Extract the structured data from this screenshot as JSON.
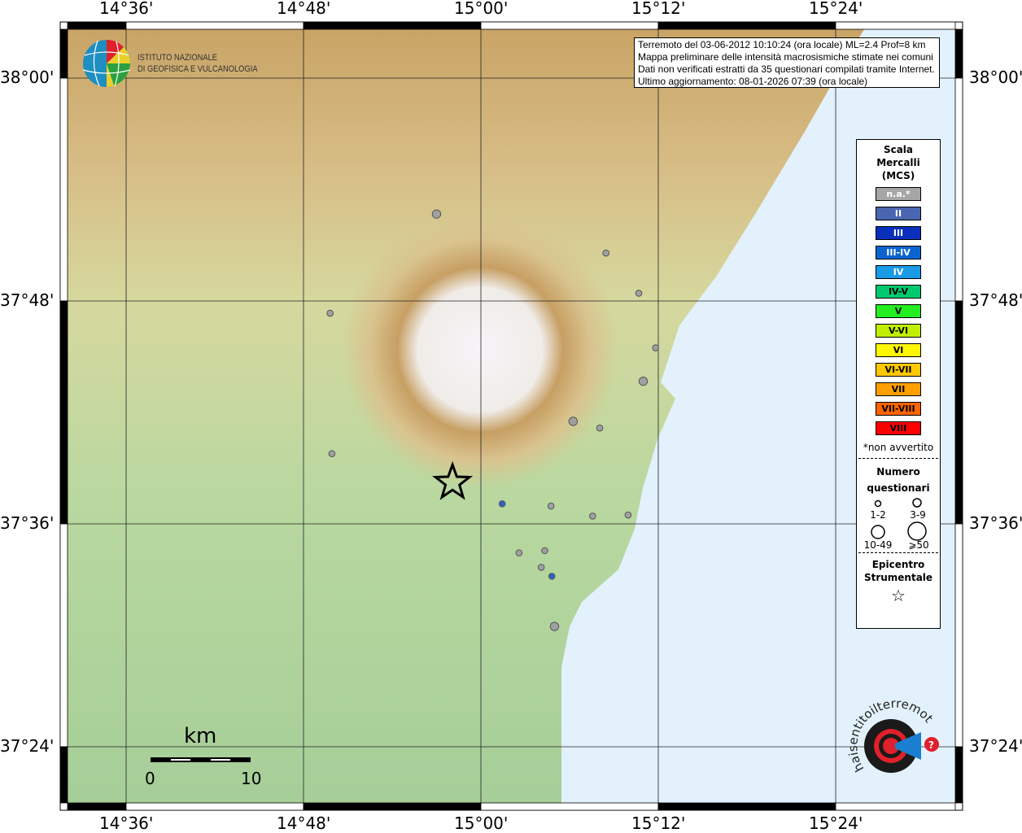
{
  "map": {
    "lon_ticks": [
      "14°36'",
      "14°48'",
      "15°00'",
      "15°12'",
      "15°24'"
    ],
    "lat_ticks": [
      "38°00'",
      "37°48'",
      "37°36'",
      "37°24'"
    ],
    "colors": {
      "sea": "#e2f1fc",
      "land_low": "#a8cf98",
      "land_high": "#c49a5a",
      "summit": "#f4f2f6"
    },
    "scale_bar": {
      "unit": "km",
      "start": "0",
      "end": "10"
    },
    "epicenter": {
      "lon": 14.968,
      "lat": 37.637,
      "icon": "star-icon"
    },
    "points": [
      {
        "lon": 14.95,
        "lat": 37.878,
        "size": "3-9",
        "color": "#a0a0a0"
      },
      {
        "lon": 15.141,
        "lat": 37.843,
        "size": "1-2",
        "color": "#a0a0a0"
      },
      {
        "lon": 15.178,
        "lat": 37.807,
        "size": "1-2",
        "color": "#a0a0a0"
      },
      {
        "lon": 14.83,
        "lat": 37.789,
        "size": "1-2",
        "color": "#a0a0a0"
      },
      {
        "lon": 15.197,
        "lat": 37.758,
        "size": "1-2",
        "color": "#a0a0a0"
      },
      {
        "lon": 15.183,
        "lat": 37.728,
        "size": "3-9",
        "color": "#a0a0a0"
      },
      {
        "lon": 15.104,
        "lat": 37.692,
        "size": "3-9",
        "color": "#a0a0a0"
      },
      {
        "lon": 15.134,
        "lat": 37.686,
        "size": "1-2",
        "color": "#a0a0a0"
      },
      {
        "lon": 14.832,
        "lat": 37.663,
        "size": "1-2",
        "color": "#a0a0a0"
      },
      {
        "lon": 15.024,
        "lat": 37.618,
        "size": "1-2",
        "color": "#2f62c4"
      },
      {
        "lon": 15.079,
        "lat": 37.616,
        "size": "1-2",
        "color": "#a0a0a0"
      },
      {
        "lon": 15.126,
        "lat": 37.607,
        "size": "1-2",
        "color": "#a0a0a0"
      },
      {
        "lon": 15.166,
        "lat": 37.608,
        "size": "1-2",
        "color": "#a0a0a0"
      },
      {
        "lon": 15.072,
        "lat": 37.576,
        "size": "1-2",
        "color": "#a0a0a0"
      },
      {
        "lon": 15.043,
        "lat": 37.574,
        "size": "1-2",
        "color": "#a0a0a0"
      },
      {
        "lon": 15.068,
        "lat": 37.561,
        "size": "1-2",
        "color": "#a0a0a0"
      },
      {
        "lon": 15.08,
        "lat": 37.553,
        "size": "1-2",
        "color": "#2f62c4"
      },
      {
        "lon": 15.083,
        "lat": 37.508,
        "size": "3-9",
        "color": "#a0a0a0"
      }
    ]
  },
  "logos": {
    "ingv": {
      "line1": "ISTITUTO NAZIONALE",
      "line2": "DI GEOFISICA E VULCANOLOGIA"
    },
    "hsit": {
      "text": "www.haisentitoilterremoto.it"
    }
  },
  "info": {
    "lines": [
      "Terremoto del 03-06-2012 10:10:24 (ora locale) ML=2.4 Prof=8 km",
      "Mappa preliminare delle intensità macrosismiche stimate nei comuni",
      "Dati non verificati estratti da 35 questionari compilati tramite Internet.",
      "Ultimo aggiornamento: 08-01-2026 07:39 (ora locale)"
    ]
  },
  "legend": {
    "title": [
      "Scala",
      "Mercalli",
      "(MCS)"
    ],
    "scale": [
      {
        "label": "n.a.*",
        "color": "#a6a6a6",
        "text": "#ffffff"
      },
      {
        "label": "II",
        "color": "#4a66b0",
        "text": "#ffffff"
      },
      {
        "label": "III",
        "color": "#0a2fbd",
        "text": "#ffffff"
      },
      {
        "label": "III-IV",
        "color": "#0a64d0",
        "text": "#ffffff"
      },
      {
        "label": "IV",
        "color": "#1a9be6",
        "text": "#ffffff"
      },
      {
        "label": "IV-V",
        "color": "#00c86e",
        "text": "#000000"
      },
      {
        "label": "V",
        "color": "#22ee22",
        "text": "#000000"
      },
      {
        "label": "V-VI",
        "color": "#c0f000",
        "text": "#000000"
      },
      {
        "label": "VI",
        "color": "#fff700",
        "text": "#000000"
      },
      {
        "label": "VI-VII",
        "color": "#ffc800",
        "text": "#000000"
      },
      {
        "label": "VII",
        "color": "#ffa000",
        "text": "#000000"
      },
      {
        "label": "VII-VIII",
        "color": "#ff6400",
        "text": "#000000"
      },
      {
        "label": "VIII",
        "color": "#ff0000",
        "text": "#000000"
      }
    ],
    "note": "*non avvertito",
    "count_title": [
      "Numero",
      "questionari"
    ],
    "counts": [
      "1-2",
      "3-9",
      "10-49",
      "⩾50"
    ],
    "epicenter_title": [
      "Epicentro",
      "Strumentale"
    ]
  }
}
